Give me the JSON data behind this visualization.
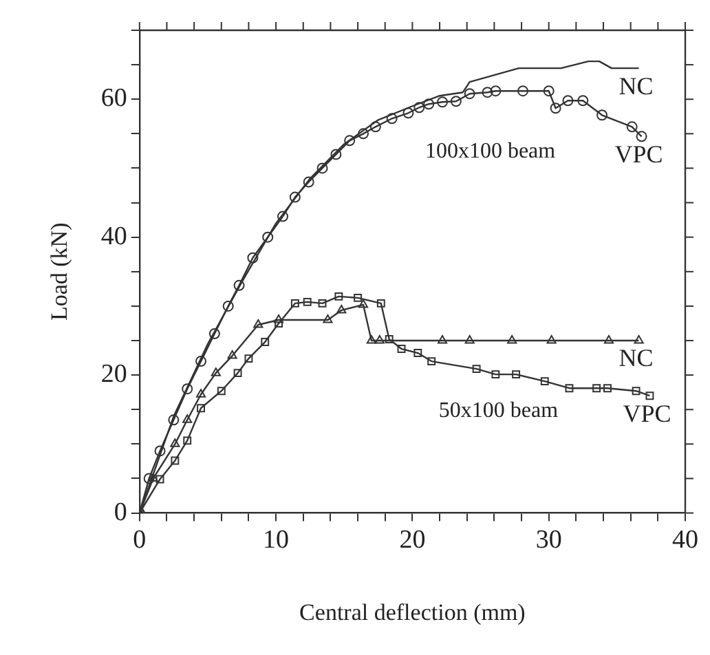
{
  "chart_data": {
    "type": "line",
    "xlabel": "Central deflection (mm)",
    "ylabel": "Load (kN)",
    "xlim": [
      0,
      40
    ],
    "ylim": [
      0,
      70
    ],
    "xticks": [
      0,
      {
        "value": 2,
        "label": null
      },
      {
        "value": 4,
        "label": null
      },
      {
        "value": 6,
        "label": null
      },
      {
        "value": 8,
        "label": null
      },
      10,
      {
        "value": 12,
        "label": null
      },
      {
        "value": 14,
        "label": null
      },
      {
        "value": 16,
        "label": null
      },
      {
        "value": 18,
        "label": null
      },
      20,
      {
        "value": 22,
        "label": null
      },
      {
        "value": 24,
        "label": null
      },
      {
        "value": 26,
        "label": null
      },
      {
        "value": 28,
        "label": null
      },
      30,
      {
        "value": 32,
        "label": null
      },
      {
        "value": 34,
        "label": null
      },
      {
        "value": 36,
        "label": null
      },
      {
        "value": 38,
        "label": null
      },
      40
    ],
    "yticks": [
      0,
      {
        "value": 5,
        "label": null
      },
      {
        "value": 10,
        "label": null
      },
      {
        "value": 15,
        "label": null
      },
      20,
      {
        "value": 25,
        "label": null
      },
      {
        "value": 30,
        "label": null
      },
      {
        "value": 35,
        "label": null
      },
      40,
      {
        "value": 45,
        "label": null
      },
      {
        "value": 50,
        "label": null
      },
      {
        "value": 55,
        "label": null
      },
      60,
      {
        "value": 65,
        "label": null
      },
      {
        "value": 70,
        "label": null
      }
    ],
    "grid": false,
    "legend": "right",
    "line_style": "solid",
    "series": [
      {
        "name": "NC",
        "color": "#333333",
        "marker": "none",
        "x": [
          0,
          2.5,
          5,
          7.5,
          10,
          12.5,
          15,
          17.5,
          20,
          22,
          23.7,
          24.2,
          27.8,
          30.9,
          32.9,
          33.7,
          34.6,
          36.6
        ],
        "values": [
          0,
          14,
          24.5,
          33.5,
          42,
          48.5,
          53.5,
          57,
          59,
          60.5,
          61,
          62.5,
          64.5,
          64.5,
          65.5,
          65.5,
          64.5,
          64.5
        ]
      },
      {
        "name": "VPC",
        "color": "#333333",
        "marker": "circle",
        "x": [
          0,
          0.7,
          1.5,
          2.5,
          3.5,
          4.5,
          5.5,
          6.5,
          7.3,
          8.3,
          9.4,
          10.5,
          11.4,
          12.4,
          13.4,
          14.4,
          15.4,
          16.4,
          17.3,
          18.5,
          19.7,
          20.5,
          21.2,
          22.2,
          23.2,
          24.2,
          25.5,
          26.1,
          28.1,
          30,
          30.5,
          31.4,
          32.5,
          33.9,
          36.1,
          36.8
        ],
        "values": [
          0,
          5,
          9,
          13.5,
          18,
          22,
          26,
          30,
          33,
          37,
          40,
          43,
          45.8,
          48,
          50,
          52,
          54,
          55,
          56,
          57.2,
          58,
          58.8,
          59.3,
          59.6,
          59.7,
          60.8,
          61,
          61.2,
          61.2,
          61.2,
          58.7,
          59.8,
          59.8,
          57.7,
          56,
          54.6
        ]
      },
      {
        "name": "NC",
        "color": "#333333",
        "marker": "triangle",
        "x": [
          0,
          1,
          2.6,
          3.5,
          4.5,
          5.6,
          6.8,
          8.7,
          10.2,
          13.8,
          14.8,
          16.4,
          17,
          17.6,
          22.2,
          24.2,
          27.3,
          30.2,
          34.4,
          36.6
        ],
        "values": [
          0,
          5,
          10,
          13.5,
          17.2,
          20.3,
          22.8,
          27.3,
          28,
          28,
          29.4,
          30.2,
          25,
          25,
          25,
          25,
          25,
          25,
          25,
          25
        ]
      },
      {
        "name": "VPC",
        "color": "#333333",
        "marker": "square",
        "x": [
          0,
          1.5,
          2.6,
          3.5,
          4.5,
          6,
          7.2,
          8,
          9.2,
          10.2,
          11.4,
          12.3,
          13.4,
          14.6,
          16,
          17.7,
          18.3,
          19.2,
          20.4,
          21.4,
          24.7,
          26.1,
          27.6,
          29.7,
          31.5,
          33.5,
          34.3,
          36.4,
          37.4
        ],
        "values": [
          0,
          4.9,
          7.6,
          10.5,
          15.2,
          17.7,
          20.3,
          22.4,
          24.8,
          27.5,
          30.4,
          30.6,
          30.4,
          31.4,
          31.2,
          30.4,
          25.2,
          23.8,
          23.2,
          22,
          20.9,
          20.1,
          20.1,
          19.1,
          18.1,
          18.1,
          18.1,
          17.7,
          17
        ]
      }
    ],
    "annotations": [
      "100x100 beam",
      "50x100 beam"
    ]
  }
}
